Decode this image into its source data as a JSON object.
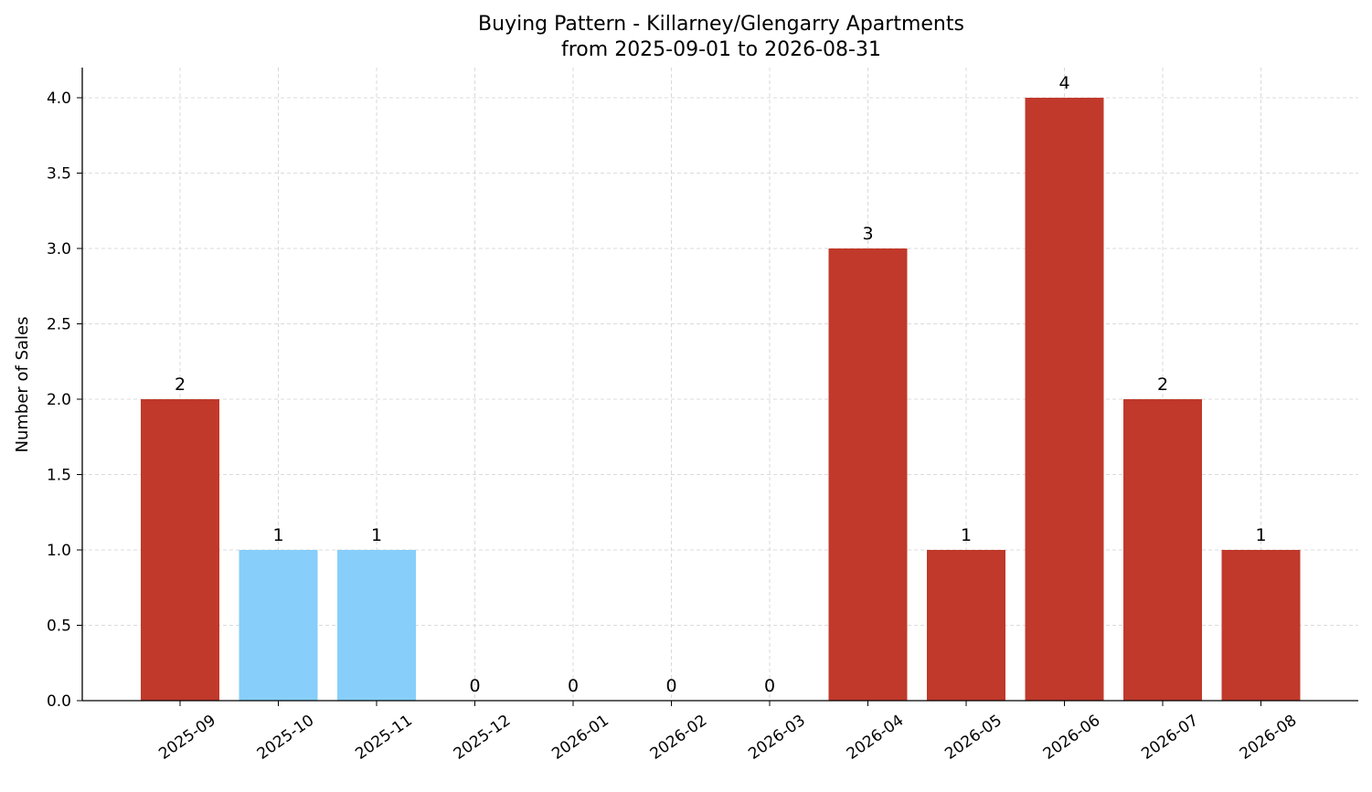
{
  "chart_data": {
    "type": "bar",
    "title": "Buying Pattern - Killarney/Glengarry Apartments",
    "subtitle": "from 2025-09-01 to 2026-08-31",
    "xlabel": "",
    "ylabel": "Number of Sales",
    "categories": [
      "2025-09",
      "2025-10",
      "2025-11",
      "2025-12",
      "2026-01",
      "2026-02",
      "2026-03",
      "2026-04",
      "2026-05",
      "2026-06",
      "2026-07",
      "2026-08"
    ],
    "values": [
      2,
      1,
      1,
      0,
      0,
      0,
      0,
      3,
      1,
      4,
      2,
      1
    ],
    "bar_colors": [
      "#c0392b",
      "#87cefa",
      "#87cefa",
      "#c0392b",
      "#c0392b",
      "#c0392b",
      "#c0392b",
      "#c0392b",
      "#c0392b",
      "#c0392b",
      "#c0392b",
      "#c0392b"
    ],
    "ylim": [
      0,
      4.2
    ],
    "yticks": [
      "0.0",
      "0.5",
      "1.0",
      "1.5",
      "2.0",
      "2.5",
      "3.0",
      "3.5",
      "4.0"
    ],
    "grid": true,
    "legend": "none"
  }
}
